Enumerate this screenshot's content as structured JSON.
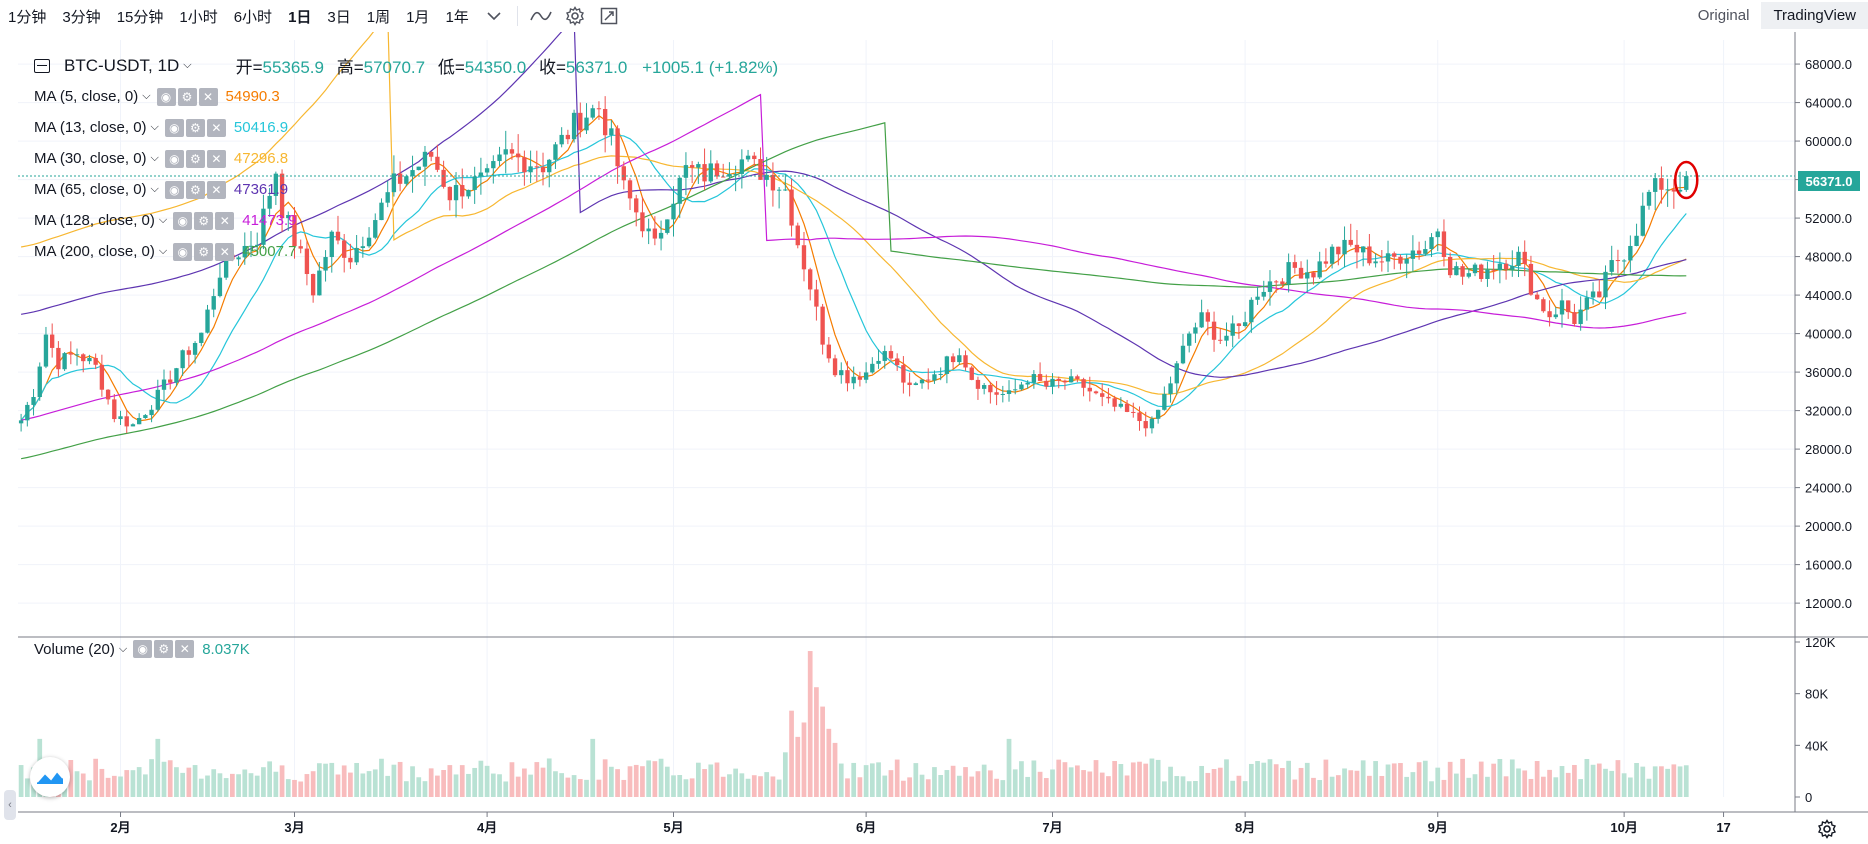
{
  "toolbar": {
    "timeframes": [
      "1分钟",
      "3分钟",
      "15分钟",
      "1小时",
      "6小时",
      "1日",
      "3日",
      "1周",
      "1月",
      "1年"
    ],
    "active_index": 5,
    "views": [
      "Original",
      "TradingView"
    ],
    "active_view": 1
  },
  "symbol": {
    "title": "BTC-USDT, 1D",
    "open_label": "开=",
    "open": "55365.9",
    "high_label": "高=",
    "high": "57070.7",
    "low_label": "低=",
    "low": "54350.0",
    "close_label": "收=",
    "close": "56371.0",
    "change": "+1005.1 (+1.82%)",
    "last_price_tag": "56371.0"
  },
  "indicators": [
    {
      "name": "MA (5, close, 0)",
      "value": "54990.3",
      "color": "#f57c00"
    },
    {
      "name": "MA (13, close, 0)",
      "value": "50416.9",
      "color": "#26c6da"
    },
    {
      "name": "MA (30, close, 0)",
      "value": "47296.8",
      "color": "#f7b731"
    },
    {
      "name": "MA (65, close, 0)",
      "value": "47361.9",
      "color": "#5e35b1"
    },
    {
      "name": "MA (128, close, 0)",
      "value": "41473.9",
      "color": "#c71ed9"
    },
    {
      "name": "MA (200, close, 0)",
      "value": "45007.7",
      "color": "#43a047"
    }
  ],
  "volume_indicator": {
    "name": "Volume (20)",
    "value": "8.037K",
    "color": "#26a69a"
  },
  "colors": {
    "up": "#26a69a",
    "down": "#ef5350",
    "up_vol": "#b9e2d4",
    "down_vol": "#f8bcbd",
    "grid": "#f0f3fa"
  },
  "chart_data": {
    "type": "candlestick",
    "symbol": "BTC-USDT",
    "interval": "1D",
    "price_axis_ticks": [
      12000,
      16000,
      20000,
      24000,
      28000,
      32000,
      36000,
      40000,
      44000,
      48000,
      52000,
      56000,
      60000,
      64000,
      68000
    ],
    "price_axis_labels": [
      "12000.0",
      "16000.0",
      "20000.0",
      "24000.0",
      "28000.0",
      "32000.0",
      "36000.0",
      "40000.0",
      "44000.0",
      "48000.0",
      "52000.0",
      "56000.0",
      "60000.0",
      "64000.0",
      "68000.0"
    ],
    "ylim": [
      9000,
      70500
    ],
    "volume_axis_ticks": [
      0,
      40000,
      80000,
      120000
    ],
    "volume_axis_labels": [
      "0",
      "40K",
      "80K",
      "120K"
    ],
    "time_axis_labels": [
      {
        "label": "2月",
        "day": 16
      },
      {
        "label": "3月",
        "day": 44
      },
      {
        "label": "4月",
        "day": 75
      },
      {
        "label": "5月",
        "day": 105
      },
      {
        "label": "6月",
        "day": 136
      },
      {
        "label": "7月",
        "day": 166
      },
      {
        "label": "8月",
        "day": 197
      },
      {
        "label": "9月",
        "day": 228
      },
      {
        "label": "10月",
        "day": 258
      },
      {
        "label": "17",
        "day": 274
      }
    ],
    "total_days": 286,
    "closes_keypoints": [
      [
        0,
        31000
      ],
      [
        2,
        34000
      ],
      [
        4,
        40000
      ],
      [
        6,
        37000
      ],
      [
        9,
        38000
      ],
      [
        12,
        36500
      ],
      [
        15,
        31500
      ],
      [
        18,
        30500
      ],
      [
        22,
        33500
      ],
      [
        26,
        37500
      ],
      [
        29,
        40000
      ],
      [
        32,
        46500
      ],
      [
        35,
        48500
      ],
      [
        38,
        50000
      ],
      [
        41,
        57000
      ],
      [
        42,
        53000
      ],
      [
        45,
        48000
      ],
      [
        47,
        44500
      ],
      [
        50,
        50000
      ],
      [
        53,
        48000
      ],
      [
        57,
        52000
      ],
      [
        60,
        55500
      ],
      [
        63,
        57000
      ],
      [
        66,
        58500
      ],
      [
        69,
        54500
      ],
      [
        72,
        55500
      ],
      [
        75,
        56000
      ],
      [
        78,
        58500
      ],
      [
        81,
        58000
      ],
      [
        84,
        57500
      ],
      [
        87,
        60000
      ],
      [
        90,
        62500
      ],
      [
        93,
        63500
      ],
      [
        95,
        60000
      ],
      [
        97,
        55000
      ],
      [
        100,
        51500
      ],
      [
        102,
        49000
      ],
      [
        104,
        53000
      ],
      [
        107,
        57000
      ],
      [
        110,
        56500
      ],
      [
        113,
        57500
      ],
      [
        116,
        58000
      ],
      [
        120,
        56500
      ],
      [
        123,
        55000
      ],
      [
        125,
        49500
      ],
      [
        127,
        45000
      ],
      [
        129,
        39500
      ],
      [
        131,
        36500
      ],
      [
        133,
        35500
      ],
      [
        136,
        36000
      ],
      [
        138,
        38000
      ],
      [
        140,
        37500
      ],
      [
        143,
        34000
      ],
      [
        146,
        35500
      ],
      [
        149,
        37000
      ],
      [
        151,
        38500
      ],
      [
        153,
        35500
      ],
      [
        156,
        34000
      ],
      [
        159,
        33500
      ],
      [
        162,
        35500
      ],
      [
        165,
        34500
      ],
      [
        168,
        35000
      ],
      [
        171,
        34500
      ],
      [
        174,
        33000
      ],
      [
        177,
        32000
      ],
      [
        180,
        31000
      ],
      [
        182,
        30500
      ],
      [
        184,
        33500
      ],
      [
        186,
        36500
      ],
      [
        188,
        40000
      ],
      [
        190,
        41500
      ],
      [
        193,
        39500
      ],
      [
        196,
        40500
      ],
      [
        199,
        44500
      ],
      [
        202,
        45800
      ],
      [
        205,
        46800
      ],
      [
        208,
        46500
      ],
      [
        211,
        48500
      ],
      [
        214,
        49000
      ],
      [
        217,
        48000
      ],
      [
        220,
        47500
      ],
      [
        223,
        48500
      ],
      [
        226,
        49000
      ],
      [
        228,
        51000
      ],
      [
        230,
        47000
      ],
      [
        232,
        46000
      ],
      [
        235,
        46500
      ],
      [
        238,
        47500
      ],
      [
        241,
        48000
      ],
      [
        244,
        43500
      ],
      [
        246,
        42000
      ],
      [
        248,
        43000
      ],
      [
        250,
        41500
      ],
      [
        252,
        43000
      ],
      [
        254,
        44000
      ],
      [
        256,
        47000
      ],
      [
        258,
        48500
      ],
      [
        260,
        51000
      ],
      [
        262,
        54500
      ],
      [
        264,
        55500
      ],
      [
        266,
        55200
      ],
      [
        268,
        56371
      ]
    ],
    "last_close": 56371.0
  }
}
